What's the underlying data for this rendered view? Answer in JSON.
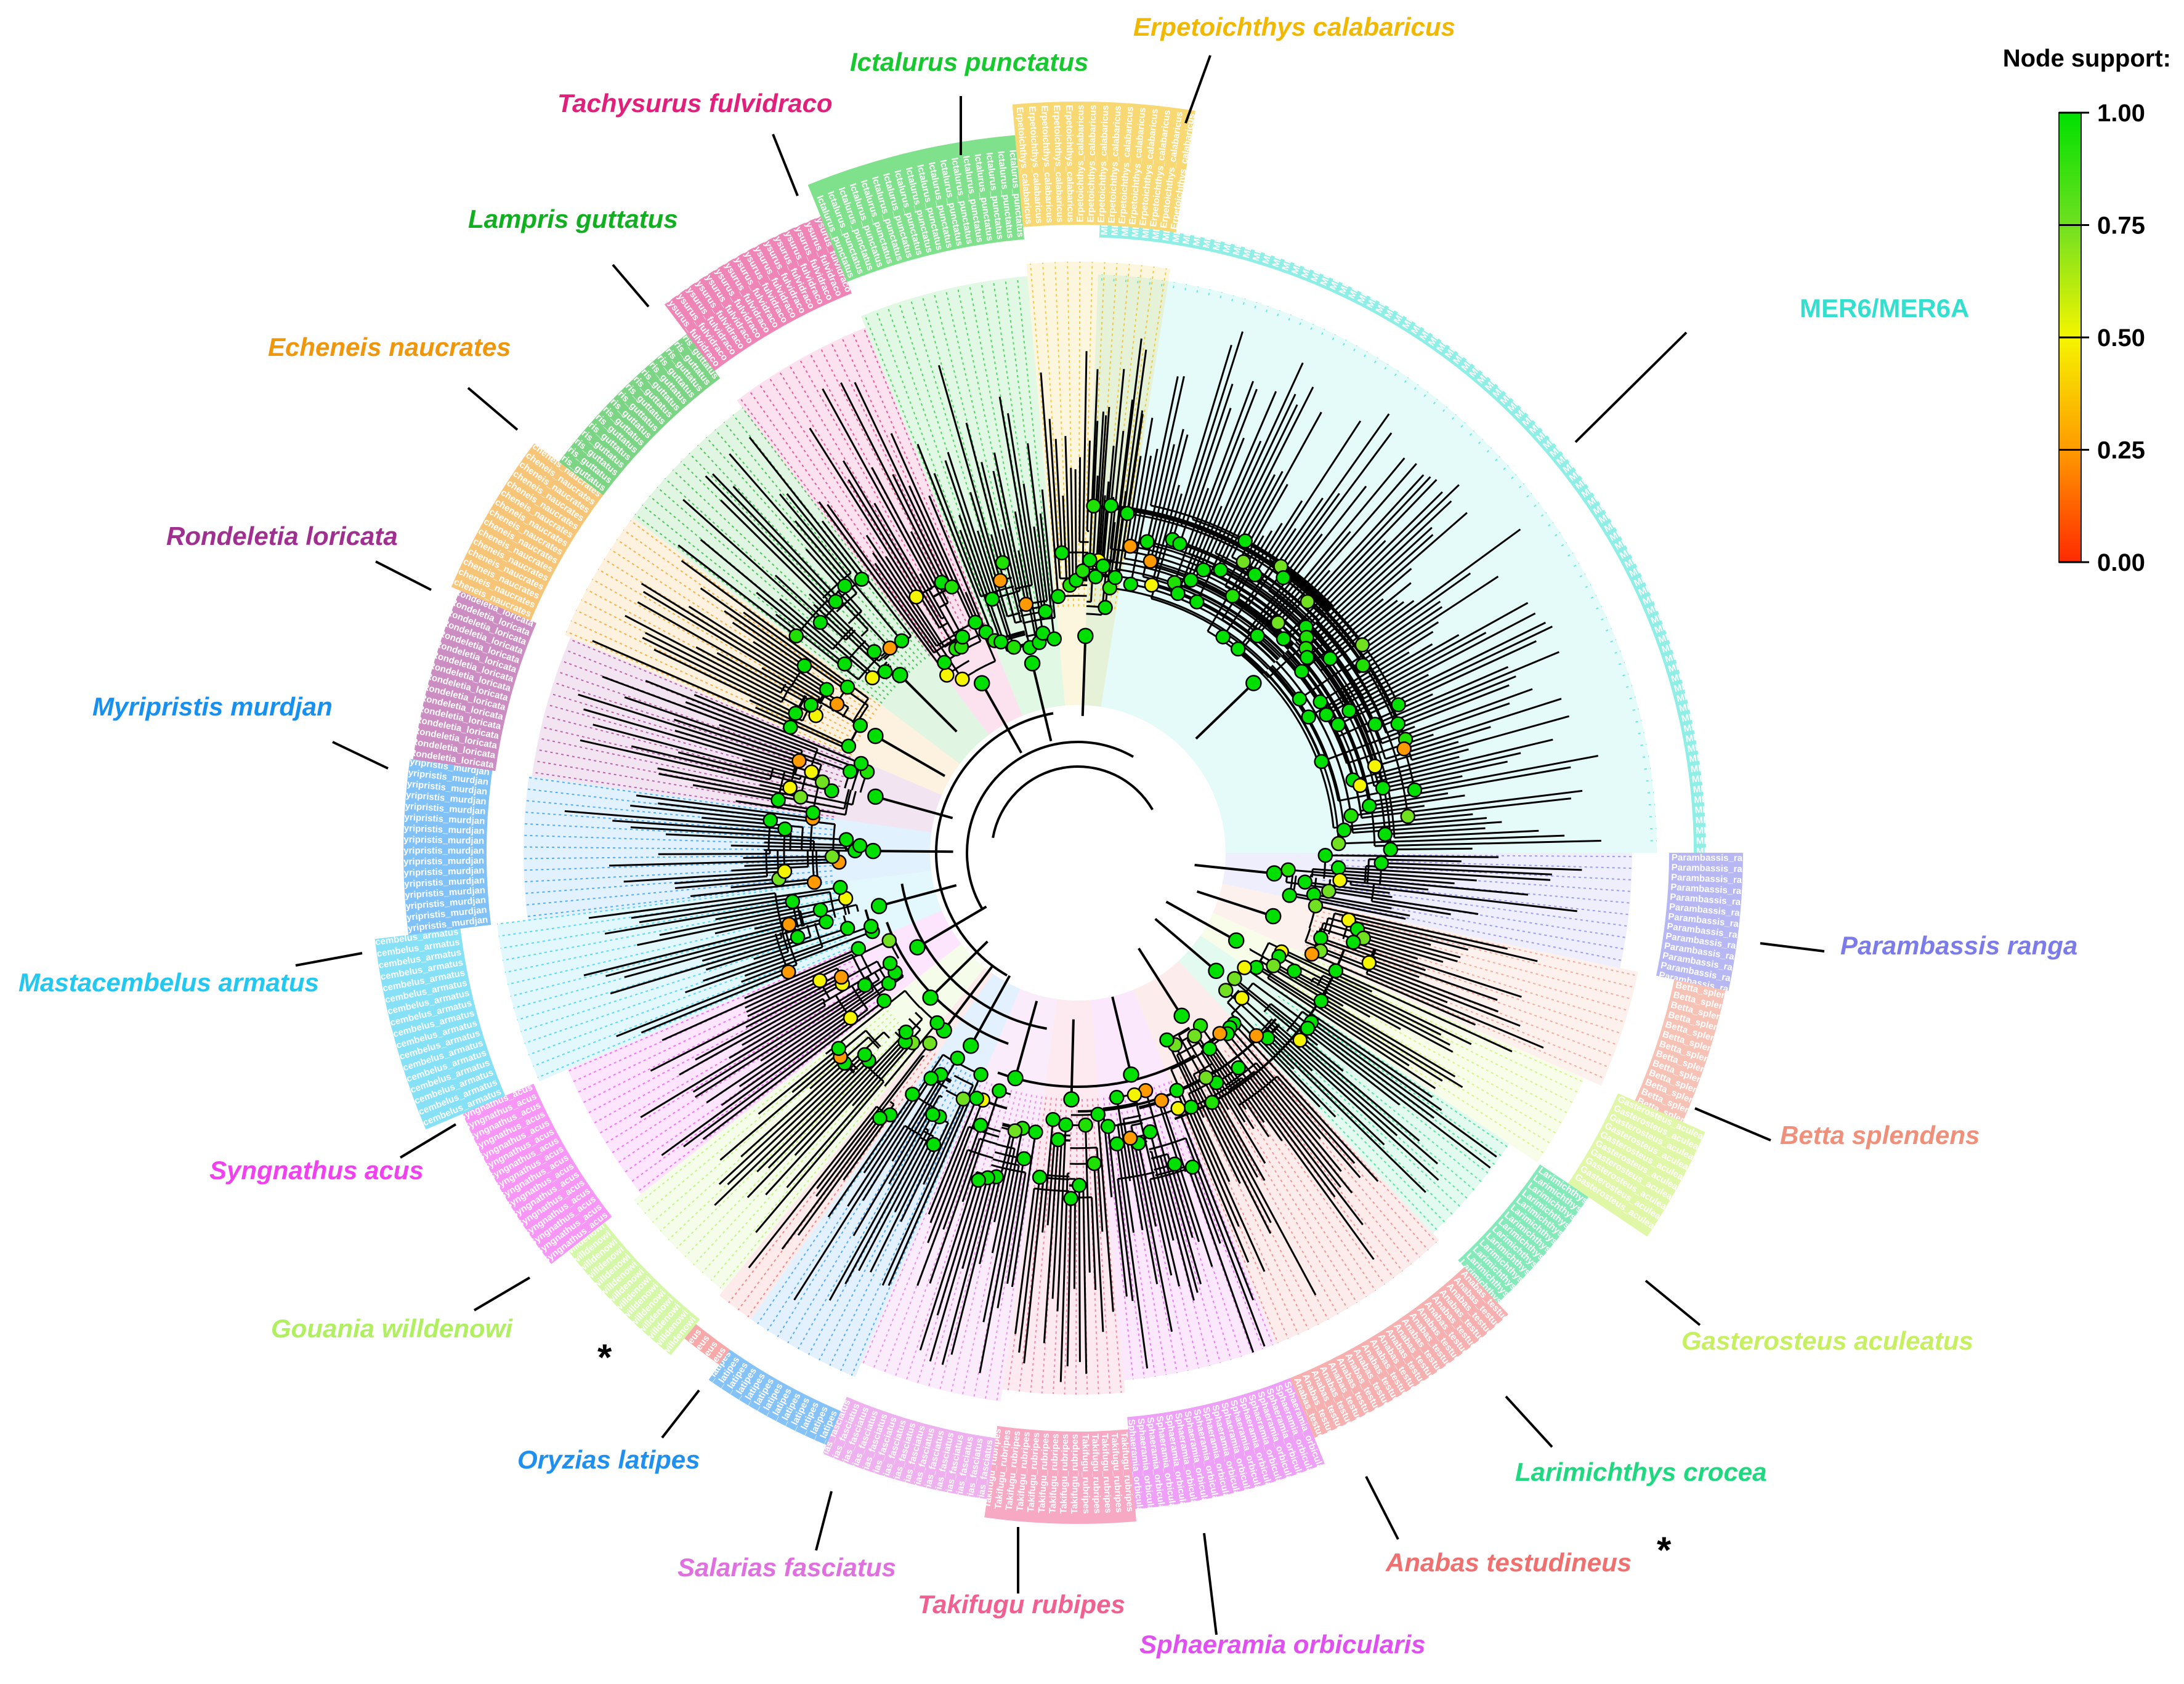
{
  "figure": {
    "legend": {
      "title": "Node support:",
      "ticks": [
        "1.00",
        "0.75",
        "0.50",
        "0.25",
        "0.00"
      ],
      "gradient_colors": [
        "#00e000",
        "#70e020",
        "#f5f500",
        "#ff9a00",
        "#ff2a00"
      ]
    },
    "star_symbol": "*",
    "clades": [
      {
        "id": "mer6",
        "label": "MER6/MER6A",
        "italic": false,
        "color": "#33e0d0",
        "tip_text": "MER6A",
        "star": false
      },
      {
        "id": "parambassis",
        "label": "Parambassis ranga",
        "italic": true,
        "color": "#7b7bea",
        "tip_text": "Parambassis_ranga",
        "star": false
      },
      {
        "id": "betta",
        "label": "Betta splendens",
        "italic": true,
        "color": "#f0907a",
        "tip_text": "Betta_splendens",
        "star": false
      },
      {
        "id": "gasterosteus",
        "label": "Gasterosteus aculeatus",
        "italic": true,
        "color": "#c6f060",
        "tip_text": "Gasterosteus_aculeatus",
        "star": false
      },
      {
        "id": "larimichthys",
        "label": "Larimichthys crocea",
        "italic": true,
        "color": "#20d880",
        "tip_text": "Larimichthys_crocea",
        "star": false
      },
      {
        "id": "anabas",
        "label": "Anabas testudineus",
        "italic": true,
        "color": "#f07070",
        "tip_text": "Anabas_testudineus",
        "star": true
      },
      {
        "id": "sphaeramia",
        "label": "Sphaeramia orbicularis",
        "italic": true,
        "color": "#e050f0",
        "tip_text": "Sphaeramia_orbicularis",
        "star": false
      },
      {
        "id": "takifugu",
        "label": "Takifugu rubipes",
        "italic": true,
        "color": "#f06090",
        "tip_text": "Takifugu_rubripes",
        "star": false
      },
      {
        "id": "salarias",
        "label": "Salarias fasciatus",
        "italic": true,
        "color": "#e070e0",
        "tip_text": "Salarias_fasciatus",
        "star": false
      },
      {
        "id": "oryzias",
        "label": "Oryzias latipes",
        "italic": true,
        "color": "#2090f0",
        "tip_text": "Oryzias_latipes",
        "star": false
      },
      {
        "id": "anabas_small",
        "label": "",
        "italic": true,
        "color": "#f06060",
        "tip_text": "Anabas_testudineus",
        "star": true
      },
      {
        "id": "gouania",
        "label": "Gouania willdenowi",
        "italic": true,
        "color": "#b0f060",
        "tip_text": "Gouania_willdenowi",
        "star": false
      },
      {
        "id": "syngnathus",
        "label": "Syngnathus acus",
        "italic": true,
        "color": "#f040f0",
        "tip_text": "Syngnathus_acus",
        "star": false
      },
      {
        "id": "mastacembelus",
        "label": "Mastacembelus armatus",
        "italic": true,
        "color": "#22c8f0",
        "tip_text": "Mastacembelus_armatus",
        "star": false
      },
      {
        "id": "myripristis",
        "label": "Myripristis murdjan",
        "italic": true,
        "color": "#1890f0",
        "tip_text": "Myripristis_murdjan",
        "star": false
      },
      {
        "id": "rondeletia",
        "label": "Rondeletia loricata",
        "italic": true,
        "color": "#a03090",
        "tip_text": "Rondeletia_loricata",
        "star": false
      },
      {
        "id": "echeneis",
        "label": "Echeneis naucrates",
        "italic": true,
        "color": "#f0960a",
        "tip_text": "Echeneis_naucrates",
        "star": false
      },
      {
        "id": "lampris",
        "label": "Lampris guttatus",
        "italic": true,
        "color": "#10b020",
        "tip_text": "Lampris_guttatus",
        "star": false
      },
      {
        "id": "tachysurus",
        "label": "Tachysurus fulvidraco",
        "italic": true,
        "color": "#e0207a",
        "tip_text": "Tachysurus_fulvidraco",
        "star": false
      },
      {
        "id": "ictalurus",
        "label": "Ictalurus punctatus",
        "italic": true,
        "color": "#18c830",
        "tip_text": "Ictalurus_punctatus",
        "star": false
      },
      {
        "id": "erpetoichthys",
        "label": "Erpetoichthys calabaricus",
        "italic": true,
        "color": "#f0b800",
        "tip_text": "Erpetoichthys_calabaricus",
        "star": false
      }
    ]
  }
}
